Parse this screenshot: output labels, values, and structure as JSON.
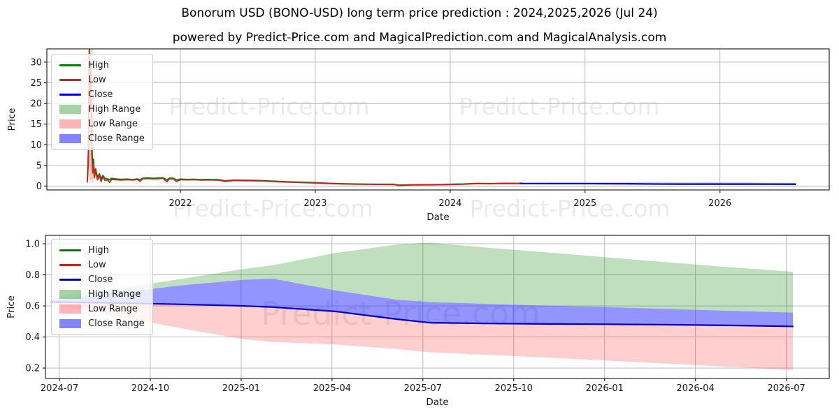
{
  "title": "Bonorum USD (BONO-USD) long term price prediction : 2024,2025,2026 (Jul 24)",
  "subtitle": "powered by Predict-Price.com and MagicalPrediction.com and MagicalAnalysis.com",
  "watermark": "Predict-Price.com",
  "colors": {
    "high": "#008000",
    "low": "#d01f1f",
    "close": "#0000cd",
    "high_range_fill": "#008000",
    "low_range_fill": "#ff1f1f",
    "close_range_fill": "#1f1fff",
    "grid": "#b3b3b3",
    "spine": "#262626"
  },
  "history": {
    "x": [
      2021.31,
      2021.318,
      2021.325,
      2021.331,
      2021.336,
      2021.343,
      2021.35,
      2021.356,
      2021.362,
      2021.372,
      2021.385,
      2021.4,
      2021.412,
      2021.425,
      2021.44,
      2021.46,
      2021.475,
      2021.49,
      2021.52,
      2021.56,
      2021.6,
      2021.65,
      2021.68,
      2021.7,
      2021.72,
      2021.76,
      2021.8,
      2021.84,
      2021.87,
      2021.9,
      2021.92,
      2021.95,
      2021.97,
      2022.0,
      2022.05,
      2022.1,
      2022.15,
      2022.2,
      2022.28,
      2022.33,
      2022.4,
      2022.5,
      2022.6,
      2022.7,
      2022.8,
      2022.9,
      2023.0,
      2023.1,
      2023.2,
      2023.3,
      2023.45,
      2023.58,
      2023.62,
      2023.7,
      2023.8,
      2023.9,
      2024.0,
      2024.1,
      2024.2,
      2024.3,
      2024.4,
      2024.48,
      2024.54
    ],
    "low": [
      1.0,
      6.0,
      32.8,
      18.0,
      28.0,
      8.0,
      3.2,
      5.2,
      2.0,
      3.6,
      1.5,
      2.6,
      1.1,
      2.3,
      1.4,
      1.5,
      0.9,
      1.6,
      1.55,
      1.45,
      1.55,
      1.45,
      1.6,
      1.15,
      1.75,
      1.85,
      1.75,
      1.8,
      1.9,
      1.05,
      1.8,
      1.75,
      1.1,
      1.55,
      1.5,
      1.55,
      1.45,
      1.5,
      1.45,
      1.15,
      1.35,
      1.3,
      1.25,
      1.1,
      0.95,
      0.85,
      0.75,
      0.6,
      0.5,
      0.45,
      0.4,
      0.38,
      0.15,
      0.26,
      0.28,
      0.3,
      0.38,
      0.45,
      0.6,
      0.55,
      0.62,
      0.6,
      0.63
    ],
    "high": [
      1.3,
      9.0,
      33.0,
      22.0,
      30.0,
      11.0,
      4.5,
      6.5,
      3.0,
      4.2,
      2.2,
      3.0,
      1.8,
      2.6,
      1.9,
      1.8,
      1.5,
      1.9,
      1.75,
      1.65,
      1.7,
      1.6,
      1.75,
      1.5,
      1.9,
      2.0,
      1.9,
      1.95,
      2.05,
      1.5,
      1.95,
      1.9,
      1.5,
      1.7,
      1.62,
      1.67,
      1.57,
      1.62,
      1.57,
      1.3,
      1.45,
      1.4,
      1.35,
      1.2,
      1.05,
      0.95,
      0.85,
      0.7,
      0.58,
      0.53,
      0.47,
      0.45,
      0.25,
      0.33,
      0.35,
      0.37,
      0.45,
      0.52,
      0.68,
      0.63,
      0.7,
      0.68,
      0.7
    ]
  },
  "prediction": {
    "x": [
      2024.52,
      2024.72,
      2024.88,
      2025.05,
      2025.13,
      2025.3,
      2025.47,
      2025.56,
      2025.72,
      2025.88,
      2026.05,
      2026.22,
      2026.38,
      2026.56
    ],
    "close": [
      0.625,
      0.618,
      0.61,
      0.6,
      0.592,
      0.565,
      0.515,
      0.492,
      0.487,
      0.484,
      0.482,
      0.479,
      0.475,
      0.468
    ],
    "close_top": [
      0.635,
      0.688,
      0.733,
      0.768,
      0.775,
      0.7,
      0.64,
      0.625,
      0.613,
      0.602,
      0.592,
      0.58,
      0.569,
      0.557
    ],
    "high_top": [
      0.655,
      0.718,
      0.775,
      0.838,
      0.862,
      0.94,
      0.995,
      1.008,
      0.975,
      0.945,
      0.912,
      0.88,
      0.85,
      0.82
    ],
    "low_bottom": [
      0.615,
      0.525,
      0.455,
      0.385,
      0.368,
      0.352,
      0.322,
      0.302,
      0.285,
      0.268,
      0.248,
      0.228,
      0.208,
      0.188
    ]
  },
  "chart_data": [
    {
      "type": "line",
      "xlabel": "Date",
      "ylabel": "Price",
      "xlim": [
        2021.01,
        2026.81
      ],
      "ylim": [
        -0.93,
        33.2
      ],
      "grid": true,
      "legend_position": "upper left",
      "x_ticks": [
        {
          "v": 2022,
          "label": "2022"
        },
        {
          "v": 2023,
          "label": "2023"
        },
        {
          "v": 2024,
          "label": "2024"
        },
        {
          "v": 2025,
          "label": "2025"
        },
        {
          "v": 2026,
          "label": "2026"
        }
      ],
      "y_ticks": [
        {
          "v": 0,
          "label": "0"
        },
        {
          "v": 5,
          "label": "5"
        },
        {
          "v": 10,
          "label": "10"
        },
        {
          "v": 15,
          "label": "15"
        },
        {
          "v": 20,
          "label": "20"
        },
        {
          "v": 25,
          "label": "25"
        },
        {
          "v": 30,
          "label": "30"
        }
      ],
      "legend": [
        {
          "label": "High",
          "swatch": "line",
          "color": "#008000"
        },
        {
          "label": "Low",
          "swatch": "line",
          "color": "#d01f1f"
        },
        {
          "label": "Close",
          "swatch": "line",
          "color": "#0000cd"
        },
        {
          "label": "High Range",
          "swatch": "patch",
          "color": "rgba(0,128,0,0.35)"
        },
        {
          "label": "Low Range",
          "swatch": "patch",
          "color": "rgba(255,31,31,0.33)"
        },
        {
          "label": "Close Range",
          "swatch": "patch",
          "color": "rgba(31,31,255,0.55)"
        }
      ],
      "series": [
        {
          "kind": "band",
          "name": "high-range-history-band",
          "color": "#008000",
          "opacity": 0.14,
          "x": [
            2021.318,
            2021.352
          ],
          "top": [
            33.2,
            33.2
          ],
          "bottom": [
            1.5,
            1.5
          ]
        },
        {
          "kind": "band",
          "name": "low-range-history-band",
          "color": "#ff1f1f",
          "opacity": 0.14,
          "x": [
            2021.325,
            2021.36
          ],
          "top": [
            31,
            31
          ],
          "bottom": [
            0.8,
            0.8
          ]
        },
        {
          "kind": "band",
          "name": "high-range-prediction-band",
          "color": "#008000",
          "opacity": 0.25,
          "x": "prediction.x",
          "top": "prediction.high_top",
          "bottom": "prediction.close_top"
        },
        {
          "kind": "band",
          "name": "low-range-prediction-band",
          "color": "#ff1f1f",
          "opacity": 0.22,
          "x": "prediction.x",
          "top": "prediction.close",
          "bottom": "prediction.low_bottom"
        },
        {
          "kind": "band",
          "name": "close-range-prediction-band",
          "color": "#1f1fff",
          "opacity": 0.48,
          "x": "prediction.x",
          "top": "prediction.close_top",
          "bottom": "prediction.close"
        },
        {
          "kind": "line",
          "name": "high-series-line",
          "color": "#008000",
          "width": 1.8,
          "x": "history.x",
          "y": "history.high"
        },
        {
          "kind": "line",
          "name": "low-series-line",
          "color": "#d01f1f",
          "width": 1.8,
          "x": "history.x",
          "y": "history.low"
        },
        {
          "kind": "line",
          "name": "close-prediction-line",
          "color": "#0000cd",
          "width": 2.2,
          "x": "prediction.x",
          "y": "prediction.close"
        }
      ]
    },
    {
      "type": "line",
      "xlabel": "Date",
      "ylabel": "Price",
      "xlim": [
        2024.5035,
        2026.66
      ],
      "ylim": [
        0.133,
        1.054
      ],
      "grid": true,
      "legend_position": "upper left",
      "x_ticks": [
        {
          "v": 2024.542,
          "label": "2024-07"
        },
        {
          "v": 2024.792,
          "label": "2024-10"
        },
        {
          "v": 2025.042,
          "label": "2025-01"
        },
        {
          "v": 2025.292,
          "label": "2025-04"
        },
        {
          "v": 2025.542,
          "label": "2025-07"
        },
        {
          "v": 2025.792,
          "label": "2025-10"
        },
        {
          "v": 2026.042,
          "label": "2026-01"
        },
        {
          "v": 2026.292,
          "label": "2026-04"
        },
        {
          "v": 2026.542,
          "label": "2026-07"
        }
      ],
      "y_ticks": [
        {
          "v": 0.2,
          "label": "0.2"
        },
        {
          "v": 0.4,
          "label": "0.4"
        },
        {
          "v": 0.6,
          "label": "0.6"
        },
        {
          "v": 0.8,
          "label": "0.8"
        },
        {
          "v": 1.0,
          "label": "1.0"
        }
      ],
      "legend": [
        {
          "label": "High",
          "swatch": "line",
          "color": "#008000"
        },
        {
          "label": "Low",
          "swatch": "line",
          "color": "#d01f1f"
        },
        {
          "label": "Close",
          "swatch": "line",
          "color": "#0000cd"
        },
        {
          "label": "High Range",
          "swatch": "patch",
          "color": "rgba(0,128,0,0.35)"
        },
        {
          "label": "Low Range",
          "swatch": "patch",
          "color": "rgba(255,31,31,0.33)"
        },
        {
          "label": "Close Range",
          "swatch": "patch",
          "color": "rgba(31,31,255,0.55)"
        }
      ],
      "series": [
        {
          "kind": "band",
          "name": "high-range-band",
          "color": "#008000",
          "opacity": 0.25,
          "x": "prediction.x",
          "top": "prediction.high_top",
          "bottom": "prediction.close_top"
        },
        {
          "kind": "band",
          "name": "low-range-band",
          "color": "#ff1f1f",
          "opacity": 0.22,
          "x": "prediction.x",
          "top": "prediction.close",
          "bottom": "prediction.low_bottom"
        },
        {
          "kind": "band",
          "name": "close-range-band",
          "color": "#1f1fff",
          "opacity": 0.48,
          "x": "prediction.x",
          "top": "prediction.close_top",
          "bottom": "prediction.close"
        },
        {
          "kind": "line",
          "name": "close-prediction-line",
          "color": "#0000cd",
          "width": 2.2,
          "x": "prediction.x",
          "y": "prediction.close"
        }
      ]
    }
  ]
}
